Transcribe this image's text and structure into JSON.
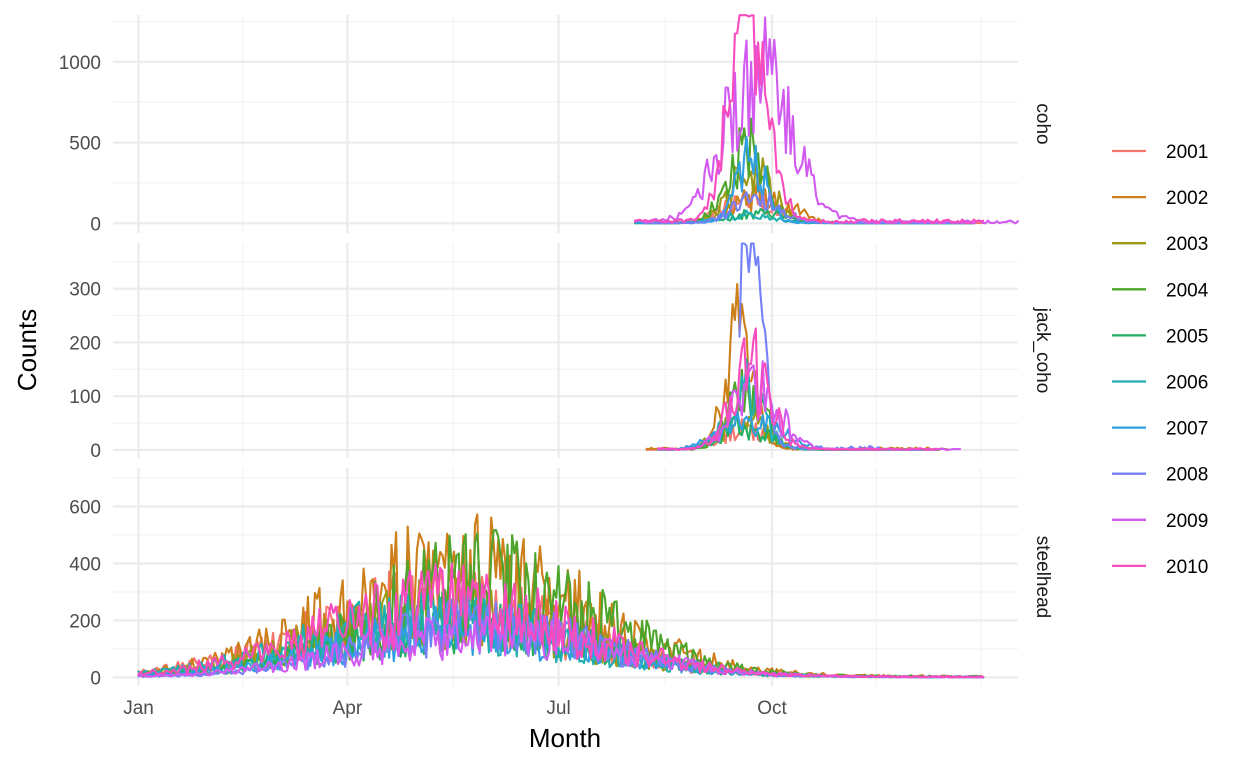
{
  "chart_data": {
    "type": "line",
    "title": "",
    "xlabel": "Month",
    "ylabel": "Counts",
    "x_ticks": [
      "Jan",
      "Apr",
      "Jul",
      "Oct"
    ],
    "x_tick_days": [
      1,
      91,
      182,
      274
    ],
    "xlim_day": [
      -10,
      380
    ],
    "facet_order": [
      "coho",
      "jack_coho",
      "steelhead"
    ],
    "legend_position": "right",
    "grid": true,
    "series": [
      {
        "name": "2001",
        "color": "#F8766D"
      },
      {
        "name": "2002",
        "color": "#D39200"
      },
      {
        "name": "2003",
        "color": "#93AA00"
      },
      {
        "name": "2004",
        "color": "#00BA38"
      },
      {
        "name": "2005",
        "color": "#00C19F"
      },
      {
        "name": "2006",
        "color": "#00B9E3"
      },
      {
        "name": "2007",
        "color": "#619CFF"
      },
      {
        "name": "2008",
        "color": "#B983FF"
      },
      {
        "name": "2009",
        "color": "#F564E3"
      },
      {
        "name": "2010",
        "color": "#FF61C3"
      }
    ],
    "series_colors": [
      "#F8766D",
      "#CD7F1A",
      "#9C9A14",
      "#4DA52C",
      "#22B060",
      "#1FAFB0",
      "#2E9FE0",
      "#7380F8",
      "#D25AF0",
      "#F84CBE"
    ],
    "facets": [
      {
        "name": "coho",
        "ylim": [
          -60,
          1290
        ],
        "y_ticks": [
          0,
          500,
          1000
        ],
        "peaks": [
          {
            "start": 220,
            "end": 365,
            "peak_day": 265,
            "peak": 150,
            "width": 12,
            "noise": 0.55
          },
          {
            "start": 215,
            "end": 360,
            "peak_day": 270,
            "peak": 200,
            "width": 11,
            "noise": 0.6
          },
          {
            "start": 220,
            "end": 360,
            "peak_day": 265,
            "peak": 320,
            "width": 9,
            "noise": 0.5
          },
          {
            "start": 215,
            "end": 360,
            "peak_day": 263,
            "peak": 480,
            "width": 8,
            "noise": 0.5
          },
          {
            "start": 220,
            "end": 360,
            "peak_day": 268,
            "peak": 60,
            "width": 12,
            "noise": 0.6
          },
          {
            "start": 215,
            "end": 360,
            "peak_day": 262,
            "peak": 50,
            "width": 12,
            "noise": 0.6
          },
          {
            "start": 215,
            "end": 360,
            "peak_day": 265,
            "peak": 400,
            "width": 6,
            "noise": 0.5
          },
          {
            "start": 220,
            "end": 360,
            "peak_day": 268,
            "peak": 150,
            "width": 10,
            "noise": 0.6
          },
          {
            "start": 215,
            "end": 380,
            "peak_day": 268,
            "peak": 950,
            "width": 14,
            "noise": 0.45
          },
          {
            "start": 215,
            "end": 365,
            "peak_day": 264,
            "peak": 1280,
            "width": 8,
            "noise": 0.45
          }
        ]
      },
      {
        "name": "jack_coho",
        "ylim": [
          -15,
          385
        ],
        "y_ticks": [
          0,
          100,
          200,
          300
        ],
        "peaks": [
          {
            "start": 220,
            "end": 345,
            "peak_day": 262,
            "peak": 40,
            "width": 10,
            "noise": 0.6
          },
          {
            "start": 220,
            "end": 350,
            "peak_day": 260,
            "peak": 220,
            "width": 6,
            "noise": 0.5
          },
          {
            "start": 225,
            "end": 340,
            "peak_day": 262,
            "peak": 55,
            "width": 10,
            "noise": 0.6
          },
          {
            "start": 225,
            "end": 340,
            "peak_day": 263,
            "peak": 130,
            "width": 7,
            "noise": 0.6
          },
          {
            "start": 225,
            "end": 340,
            "peak_day": 262,
            "peak": 45,
            "width": 10,
            "noise": 0.6
          },
          {
            "start": 225,
            "end": 345,
            "peak_day": 262,
            "peak": 110,
            "width": 8,
            "noise": 0.6
          },
          {
            "start": 225,
            "end": 345,
            "peak_day": 265,
            "peak": 60,
            "width": 12,
            "noise": 0.6
          },
          {
            "start": 260,
            "end": 320,
            "peak_day": 263,
            "peak": 380,
            "width": 6,
            "noise": 0.45
          },
          {
            "start": 225,
            "end": 355,
            "peak_day": 267,
            "peak": 110,
            "width": 10,
            "noise": 0.6
          },
          {
            "start": 225,
            "end": 345,
            "peak_day": 265,
            "peak": 160,
            "width": 8,
            "noise": 0.6
          }
        ]
      },
      {
        "name": "steelhead",
        "ylim": [
          -30,
          735
        ],
        "y_ticks": [
          0,
          200,
          400,
          600
        ],
        "peaks": [
          {
            "start": 1,
            "end": 365,
            "peak_day": 130,
            "peak": 250,
            "width": 55,
            "noise": 0.6
          },
          {
            "start": 1,
            "end": 365,
            "peak_day": 140,
            "peak": 350,
            "width": 55,
            "noise": 0.65
          },
          {
            "start": 1,
            "end": 365,
            "peak_day": 135,
            "peak": 220,
            "width": 55,
            "noise": 0.6
          },
          {
            "start": 1,
            "end": 365,
            "peak_day": 150,
            "peak": 320,
            "width": 50,
            "noise": 0.65
          },
          {
            "start": 1,
            "end": 365,
            "peak_day": 140,
            "peak": 180,
            "width": 55,
            "noise": 0.6
          },
          {
            "start": 1,
            "end": 365,
            "peak_day": 130,
            "peak": 200,
            "width": 55,
            "noise": 0.6
          },
          {
            "start": 1,
            "end": 365,
            "peak_day": 140,
            "peak": 160,
            "width": 55,
            "noise": 0.6
          },
          {
            "start": 1,
            "end": 365,
            "peak_day": 150,
            "peak": 180,
            "width": 50,
            "noise": 0.6
          },
          {
            "start": 1,
            "end": 365,
            "peak_day": 150,
            "peak": 150,
            "width": 55,
            "noise": 0.6
          },
          {
            "start": 1,
            "end": 365,
            "peak_day": 135,
            "peak": 250,
            "width": 55,
            "noise": 0.6
          }
        ]
      }
    ]
  }
}
